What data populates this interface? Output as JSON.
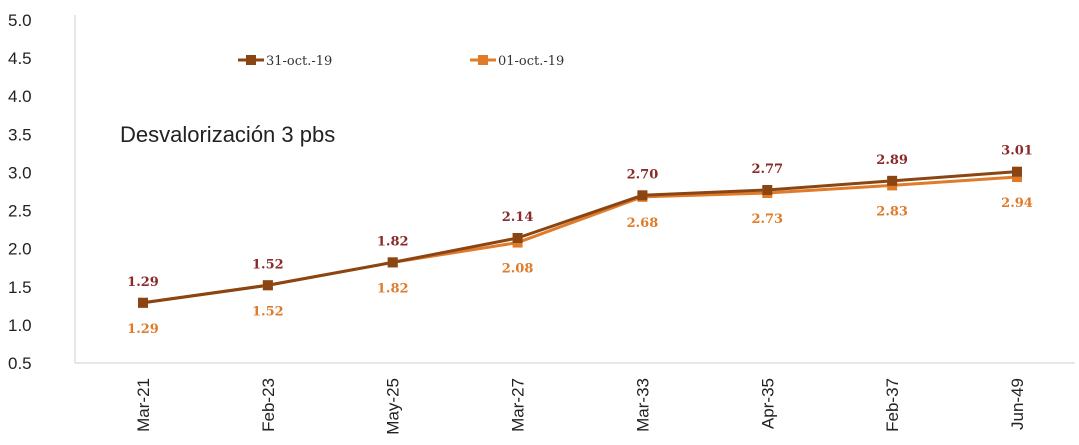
{
  "chart_data": {
    "type": "line",
    "categories": [
      "Mar-21",
      "Feb-23",
      "May-25",
      "Mar-27",
      "Mar-33",
      "Apr-35",
      "Feb-37",
      "Jun-49"
    ],
    "series": [
      {
        "name": "31-oct.-19",
        "values": [
          1.29,
          1.52,
          1.82,
          2.14,
          2.7,
          2.77,
          2.89,
          3.01
        ],
        "color": "#8B4513",
        "label_color": "#8B2A2A"
      },
      {
        "name": "01-oct.-19",
        "values": [
          1.29,
          1.52,
          1.82,
          2.08,
          2.68,
          2.73,
          2.83,
          2.94
        ],
        "color": "#E07B2A",
        "label_color": "#E07B2A"
      }
    ],
    "y_ticks": [
      "0.5",
      "1.0",
      "1.5",
      "2.0",
      "2.5",
      "3.0",
      "3.5",
      "4.0",
      "4.5",
      "5.0"
    ],
    "ylim": [
      0.5,
      5.0
    ],
    "annotation": "Desvalorización 3 pbs",
    "legend_position": "top",
    "grid": false,
    "title": "",
    "xlabel": "",
    "ylabel": ""
  }
}
